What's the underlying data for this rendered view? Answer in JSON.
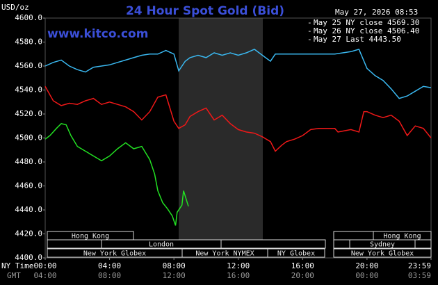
{
  "chart_data": {
    "type": "line",
    "title": "24 Hour Spot Gold (Bid)",
    "y_label": "USD/oz",
    "timestamp": "May 27, 2026 08:53",
    "watermark": "www.kitco.com",
    "x_label": "NY Time",
    "x2_label": "GMT",
    "xlim": [
      0,
      23.98
    ],
    "xticks": [
      {
        "value": 0,
        "label": "00:00"
      },
      {
        "value": 4,
        "label": "04:00"
      },
      {
        "value": 8,
        "label": "08:00"
      },
      {
        "value": 12,
        "label": "12:00"
      },
      {
        "value": 16,
        "label": "16:00"
      },
      {
        "value": 20,
        "label": "20:00"
      },
      {
        "value": 23.98,
        "label": "23:59"
      }
    ],
    "x2ticks": [
      {
        "value": 0,
        "label": "04:00"
      },
      {
        "value": 4,
        "label": "08:00"
      },
      {
        "value": 8,
        "label": "12:00"
      },
      {
        "value": 12,
        "label": "16:00"
      },
      {
        "value": 16,
        "label": "20:00"
      },
      {
        "value": 20,
        "label": "00:00"
      },
      {
        "value": 23.98,
        "label": "03:59"
      }
    ],
    "ylim": [
      4400,
      4600
    ],
    "yticks": [
      {
        "value": 4400,
        "label": "4400.0"
      },
      {
        "value": 4420,
        "label": "4420.0"
      },
      {
        "value": 4440,
        "label": "4440.0"
      },
      {
        "value": 4460,
        "label": "4460.0"
      },
      {
        "value": 4480,
        "label": "4480.0"
      },
      {
        "value": 4500,
        "label": "4500.0"
      },
      {
        "value": 4520,
        "label": "4520.0"
      },
      {
        "value": 4540,
        "label": "4540.0"
      },
      {
        "value": 4560,
        "label": "4560.0"
      },
      {
        "value": 4580,
        "label": "4580.0"
      },
      {
        "value": 4600,
        "label": "4600.0"
      }
    ],
    "sessions": [
      "Hong Kong",
      "Hong Kong",
      "London",
      "Sydney",
      "New York Globex",
      "New York NYMEX",
      "NY Globex",
      "New York Globex"
    ],
    "series": [
      {
        "name": "May 25 NY close 4569.30",
        "color": "#3ab8f0",
        "x": [
          0,
          0.5,
          1,
          1.5,
          2,
          2.5,
          3,
          3.5,
          4,
          4.5,
          5,
          5.5,
          6,
          6.5,
          7,
          7.5,
          8,
          8.3,
          8.7,
          9,
          9.5,
          10,
          10.5,
          11,
          11.5,
          12,
          12.5,
          13,
          13.5,
          14,
          14.3,
          15,
          16,
          17,
          18,
          19,
          19.5,
          20,
          20.5,
          21,
          21.5,
          22,
          22.5,
          23,
          23.5,
          23.98
        ],
        "values": [
          4560,
          4563,
          4565,
          4560,
          4557,
          4555,
          4559,
          4560,
          4561,
          4563,
          4565,
          4567,
          4569,
          4570,
          4570,
          4573,
          4570,
          4556,
          4564,
          4567,
          4569,
          4567,
          4571,
          4569,
          4571,
          4569,
          4571,
          4574,
          4569,
          4564,
          4570,
          4570,
          4570,
          4570,
          4570,
          4572,
          4574,
          4558,
          4552,
          4548,
          4541,
          4533,
          4535,
          4539,
          4543,
          4542
        ]
      },
      {
        "name": "May 26 NY close 4506.40",
        "color": "#f01818",
        "x": [
          0,
          0.5,
          1,
          1.5,
          2,
          2.5,
          3,
          3.5,
          4,
          4.5,
          5,
          5.5,
          6,
          6.5,
          7,
          7.5,
          8,
          8.3,
          8.7,
          9,
          9.5,
          10,
          10.5,
          11,
          11.5,
          12,
          12.5,
          13,
          13.5,
          14,
          14.3,
          14.7,
          15,
          15.5,
          16,
          16.5,
          17,
          18,
          18.2,
          19,
          19.5,
          19.8,
          20,
          20.5,
          21,
          21.5,
          22,
          22.5,
          23,
          23.5,
          23.98
        ],
        "values": [
          4543,
          4531,
          4527,
          4529,
          4528,
          4531,
          4533,
          4528,
          4530,
          4528,
          4526,
          4522,
          4515,
          4522,
          4534,
          4536,
          4514,
          4508,
          4511,
          4518,
          4522,
          4525,
          4515,
          4519,
          4512,
          4507,
          4505,
          4504,
          4501,
          4497,
          4489,
          4494,
          4497,
          4499,
          4502,
          4507,
          4508,
          4508,
          4505,
          4507,
          4505,
          4522,
          4522,
          4519,
          4517,
          4519,
          4514,
          4502,
          4510,
          4508,
          4500
        ]
      },
      {
        "name": "May 27 Last 4443.50",
        "color": "#22e022",
        "x": [
          0,
          0.3,
          0.7,
          1,
          1.3,
          1.6,
          2,
          2.5,
          3,
          3.5,
          4,
          4.5,
          5,
          5.5,
          6,
          6.5,
          6.8,
          7,
          7.3,
          7.6,
          7.9,
          8.1,
          8.2,
          8.5,
          8.6,
          8.9
        ],
        "values": [
          4499,
          4502,
          4508,
          4512,
          4511,
          4502,
          4493,
          4489,
          4485,
          4481,
          4485,
          4491,
          4496,
          4491,
          4493,
          4482,
          4470,
          4456,
          4446,
          4441,
          4435,
          4427,
          4438,
          4444,
          4456,
          4443
        ]
      }
    ]
  }
}
